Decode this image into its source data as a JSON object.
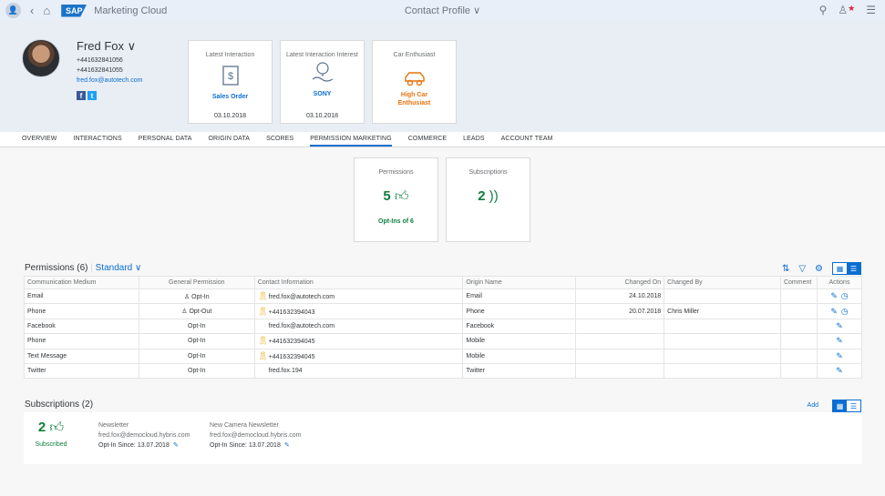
{
  "shell": {
    "logo": "SAP",
    "app_title": "Marketing Cloud",
    "center_title": "Contact Profile",
    "chevron": "∨"
  },
  "profile": {
    "name": "Fred Fox",
    "phone1": "+441632841056",
    "phone2": "+441632841055",
    "email": "fred.fox@autotech.com"
  },
  "cards": [
    {
      "title": "Latest Interaction",
      "value": "Sales Order",
      "date": "03.10.2018",
      "icon": "document-dollar-icon"
    },
    {
      "title": "Latest Interaction Interest",
      "value": "SONY",
      "date": "03.10.2018",
      "icon": "lightbulb-icon"
    },
    {
      "title": "Car Enthusiast",
      "value": "High Car Enthusiast",
      "date": "",
      "icon": "car-icon"
    }
  ],
  "tabs": [
    "OVERVIEW",
    "INTERACTIONS",
    "PERSONAL DATA",
    "ORIGIN DATA",
    "SCORES",
    "PERMISSION MARKETING",
    "COMMERCE",
    "LEADS",
    "ACCOUNT TEAM"
  ],
  "active_tab": "PERMISSION MARKETING",
  "tiles": {
    "permissions": {
      "title": "Permissions",
      "value": "5",
      "subtitle": "Opt-Ins of 6"
    },
    "subscriptions": {
      "title": "Subscriptions",
      "value": "2"
    }
  },
  "permissions": {
    "title": "Permissions (6)",
    "variant": "Standard",
    "columns": [
      "Communication Medium",
      "General Permission",
      "Contact Information",
      "Origin Name",
      "Changed On",
      "Changed By",
      "Comment",
      "Actions"
    ],
    "rows": [
      {
        "medium": "Email",
        "permission": "Opt-In",
        "status": "in",
        "badge": true,
        "contact": "fred.fox@autotech.com",
        "contact_badge": true,
        "origin": "Email",
        "changed_on": "24.10.2018",
        "changed_by": "",
        "comment": "",
        "history": true
      },
      {
        "medium": "Phone",
        "permission": "Opt-Out",
        "status": "out",
        "badge": true,
        "contact": "+441632394043",
        "contact_badge": true,
        "origin": "Phone",
        "changed_on": "20.07.2018",
        "changed_by": "Chris Miller",
        "comment": "",
        "history": true
      },
      {
        "medium": "Facebook",
        "permission": "Opt-In",
        "status": "in",
        "badge": false,
        "contact": "fred.fox@autotech.com",
        "contact_badge": false,
        "origin": "Facebook",
        "changed_on": "",
        "changed_by": "",
        "comment": "",
        "history": false
      },
      {
        "medium": "Phone",
        "permission": "Opt-In",
        "status": "in",
        "badge": false,
        "contact": "+441632394045",
        "contact_badge": true,
        "origin": "Mobile",
        "changed_on": "",
        "changed_by": "",
        "comment": "",
        "history": false
      },
      {
        "medium": "Text Message",
        "permission": "Opt-In",
        "status": "in",
        "badge": false,
        "contact": "+441632394045",
        "contact_badge": true,
        "origin": "Mobile",
        "changed_on": "",
        "changed_by": "",
        "comment": "",
        "history": false
      },
      {
        "medium": "Twitter",
        "permission": "Opt-In",
        "status": "in",
        "badge": false,
        "contact": "fred.fox.194",
        "contact_badge": false,
        "origin": "Twitter",
        "changed_on": "",
        "changed_by": "",
        "comment": "",
        "history": false
      }
    ]
  },
  "subscriptions": {
    "title": "Subscriptions (2)",
    "add_label": "Add",
    "kpi_value": "2",
    "kpi_label": "Subscribed",
    "items": [
      {
        "title": "Newsletter",
        "email": "fred.fox@democloud.hybris.com",
        "optin_label": "Opt-In Since:",
        "optin_date": "13.07.2018"
      },
      {
        "title": "New Camera Newsletter",
        "email": "fred.fox@democloud.hybris.com",
        "optin_label": "Opt-In Since:",
        "optin_date": "13.07.2018"
      }
    ]
  },
  "colors": {
    "accent": "#0a6ed1",
    "positive": "#107e3e",
    "negative": "#bb0000",
    "warning": "#e9730c"
  }
}
